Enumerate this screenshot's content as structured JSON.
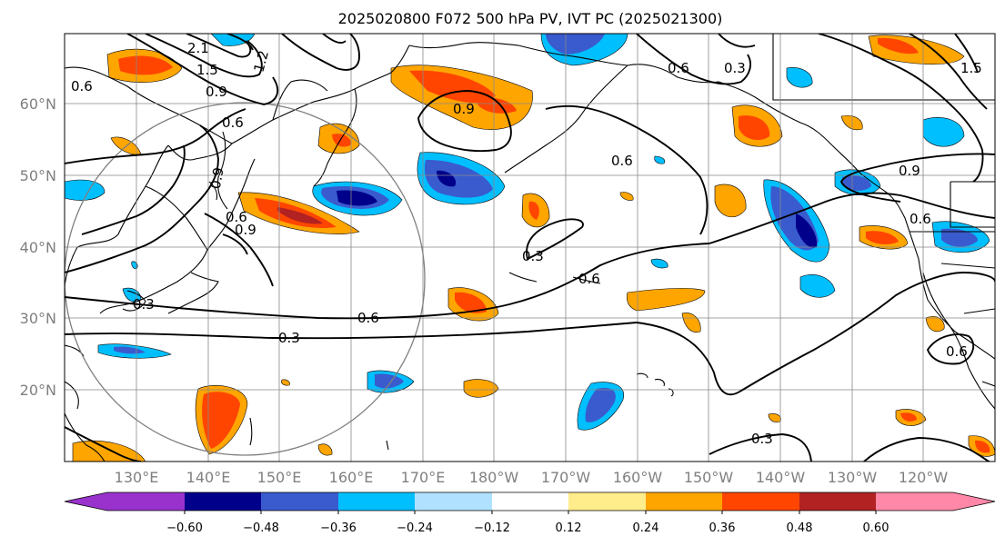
{
  "title": "2025020800 F072 500 hPa PV, IVT PC (2025021300)",
  "lat_labels": [
    "60°N",
    "50°N",
    "40°N",
    "30°N",
    "20°N"
  ],
  "lon_labels": [
    "130°E",
    "140°E",
    "150°E",
    "160°E",
    "170°E",
    "180°W",
    "170°W",
    "160°W",
    "150°W",
    "140°W",
    "130°W",
    "120°W"
  ],
  "colorbar": {
    "ticks": [
      "−0.60",
      "−0.48",
      "−0.36",
      "−0.24",
      "−0.12",
      "0.12",
      "0.24",
      "0.36",
      "0.48",
      "0.60"
    ],
    "colors": [
      "#9932cc",
      "#00008b",
      "#3a5bcd",
      "#00bfff",
      "#b0e2ff",
      "#ffffff",
      "#ffec8b",
      "#ffa500",
      "#ff4500",
      "#b22222",
      "#ff88a8"
    ]
  },
  "contour_labels": [
    "2.1",
    "1.5",
    "1.2",
    "0.9",
    "0.6",
    "0.9",
    "0.6",
    "0.9",
    "0.6",
    "0.3",
    "0.6",
    "0.3",
    "0.6",
    "0.3",
    "0.6",
    "0.3",
    "0.9",
    "0.6",
    "0.6",
    "0.3",
    "0.9",
    "1.5",
    "0.6"
  ],
  "chart_data": {
    "type": "map",
    "projection": "plate carree",
    "extent": {
      "lon": [
        120,
        247
      ],
      "lat": [
        10,
        70
      ]
    },
    "field_shaded": "500 hPa PV PC",
    "field_contours": "IVT PC",
    "contour_levels": [
      0.3,
      0.6,
      0.9,
      1.2,
      1.5,
      2.1
    ],
    "shading_levels": [
      -0.6,
      -0.48,
      -0.36,
      -0.24,
      -0.12,
      0.12,
      0.24,
      0.36,
      0.48,
      0.6
    ],
    "grid": true
  }
}
